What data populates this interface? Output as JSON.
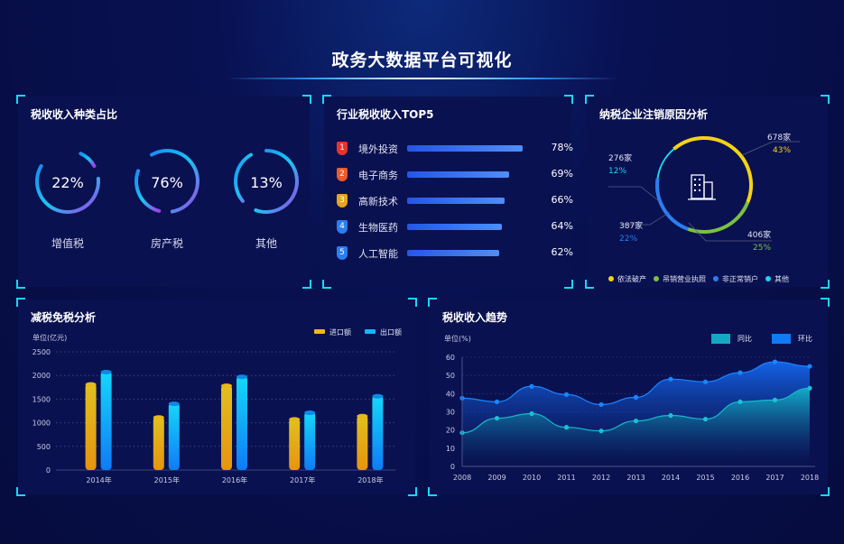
{
  "header": {
    "title": "政务大数据平台可视化"
  },
  "tax_types": {
    "title": "税收收入种类占比",
    "items": [
      {
        "name": "增值税",
        "percent": 22,
        "label": "22%"
      },
      {
        "name": "房产税",
        "percent": 76,
        "label": "76%"
      },
      {
        "name": "其他",
        "percent": 13,
        "label": "13%"
      }
    ]
  },
  "top5": {
    "title": "行业税收收入TOP5",
    "items": [
      {
        "rank": "1",
        "name": "境外投资",
        "value": 78,
        "label": "78%",
        "color": "#e8332c"
      },
      {
        "rank": "2",
        "name": "电子商务",
        "value": 69,
        "label": "69%",
        "color": "#ec5a2a"
      },
      {
        "rank": "3",
        "name": "高新技术",
        "value": 66,
        "label": "66%",
        "color": "#e6a521"
      },
      {
        "rank": "4",
        "name": "生物医药",
        "value": 64,
        "label": "64%",
        "color": "#2a7ef0"
      },
      {
        "rank": "5",
        "name": "人工智能",
        "value": 62,
        "label": "62%",
        "color": "#2a7ef0"
      }
    ]
  },
  "cancel": {
    "title": "纳税企业注销原因分析",
    "icon": "building-icon",
    "slices": [
      {
        "name": "依法破产",
        "count": "678家",
        "pct": "43%",
        "value": 43,
        "color": "#f5d313"
      },
      {
        "name": "吊销营业执照",
        "count": "406家",
        "pct": "25%",
        "value": 25,
        "color": "#7bc043"
      },
      {
        "name": "非正常销户",
        "count": "387家",
        "pct": "22%",
        "value": 22,
        "color": "#2a7ef0"
      },
      {
        "name": "其他",
        "count": "276家",
        "pct": "12%",
        "value": 12,
        "color": "#19d6f2"
      }
    ]
  },
  "chart_data": [
    {
      "type": "bar",
      "title": "减税免税分析",
      "ylabel": "单位(亿元)",
      "ylim": [
        0,
        2500
      ],
      "yticks": [
        0,
        500,
        1000,
        1500,
        2000,
        2500
      ],
      "grid": true,
      "legend": "top-right",
      "categories": [
        "2014年",
        "2015年",
        "2016年",
        "2017年",
        "2018年"
      ],
      "series": [
        {
          "name": "进口额",
          "color": "#f0b81a",
          "values": [
            1830,
            1130,
            1800,
            1090,
            1160
          ]
        },
        {
          "name": "出口额",
          "color": "#12b8f5",
          "values": [
            2090,
            1420,
            1990,
            1230,
            1580
          ]
        }
      ]
    },
    {
      "type": "area",
      "title": "税收收入趋势",
      "ylabel": "单位(%)",
      "ylim": [
        0,
        60
      ],
      "yticks": [
        0,
        10,
        20,
        30,
        40,
        50,
        60
      ],
      "grid": true,
      "legend": "top-right",
      "x": [
        "2008",
        "2009",
        "2010",
        "2011",
        "2012",
        "2013",
        "2014",
        "2015",
        "2016",
        "2017",
        "2018"
      ],
      "series": [
        {
          "name": "同比",
          "color": "#13a9c5",
          "values": [
            18.5,
            26.5,
            29,
            21.5,
            19.5,
            25,
            28,
            26,
            35.5,
            36.5,
            43
          ]
        },
        {
          "name": "环比",
          "color": "#0f7bf5",
          "values": [
            37.5,
            35.5,
            44,
            39.5,
            34,
            38,
            48,
            46.5,
            51.5,
            57.5,
            55
          ]
        }
      ]
    }
  ]
}
